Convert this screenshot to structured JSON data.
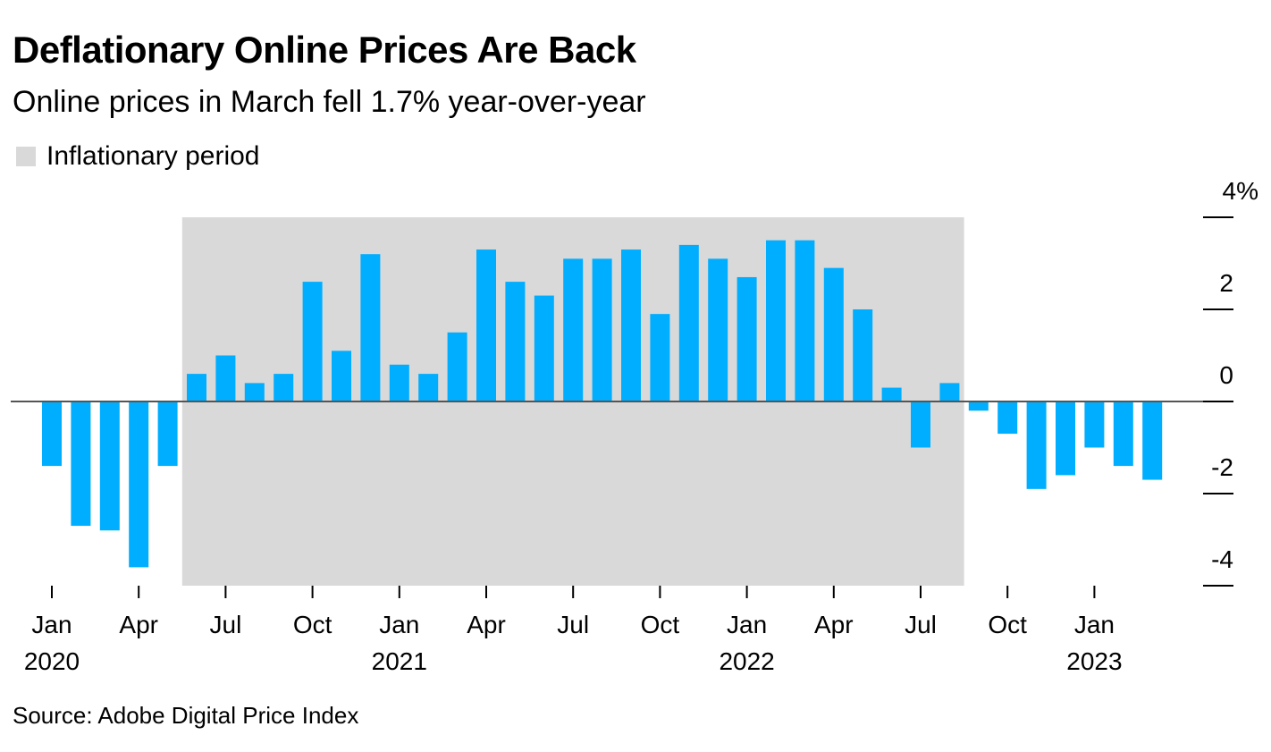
{
  "title": "Deflationary Online Prices Are Back",
  "subtitle": "Online prices in March fell 1.7% year-over-year",
  "legend": {
    "label": "Inflationary period",
    "color": "#d9d9d9"
  },
  "source": "Source: Adobe Digital Price Index",
  "colors": {
    "bar": "#00aeff",
    "shade": "#d9d9d9",
    "zero_line": "#555555"
  },
  "chart_data": {
    "type": "bar",
    "categories": [
      "2020-01",
      "2020-02",
      "2020-03",
      "2020-04",
      "2020-05",
      "2020-06",
      "2020-07",
      "2020-08",
      "2020-09",
      "2020-10",
      "2020-11",
      "2020-12",
      "2021-01",
      "2021-02",
      "2021-03",
      "2021-04",
      "2021-05",
      "2021-06",
      "2021-07",
      "2021-08",
      "2021-09",
      "2021-10",
      "2021-11",
      "2021-12",
      "2022-01",
      "2022-02",
      "2022-03",
      "2022-04",
      "2022-05",
      "2022-06",
      "2022-07",
      "2022-08",
      "2022-09",
      "2022-10",
      "2022-11",
      "2022-12",
      "2023-01",
      "2023-02",
      "2023-03"
    ],
    "values": [
      -1.4,
      -2.7,
      -2.8,
      -3.6,
      -1.4,
      0.6,
      1.0,
      0.4,
      0.6,
      2.6,
      1.1,
      3.2,
      0.8,
      0.6,
      1.5,
      3.3,
      2.6,
      2.3,
      3.1,
      3.1,
      3.3,
      1.9,
      3.4,
      3.1,
      2.7,
      3.5,
      3.5,
      2.9,
      2.0,
      0.3,
      -1.0,
      0.4,
      -0.2,
      -0.7,
      -1.9,
      -1.6,
      -1.0,
      -1.4,
      -1.7
    ],
    "shaded_region": {
      "label": "Inflationary period",
      "start": "2020-06",
      "end": "2022-08"
    },
    "ylim": [
      -4,
      4
    ],
    "y_ticks": [
      "4%",
      "2",
      "0",
      "-2",
      "-4"
    ],
    "y_tick_values": [
      4,
      2,
      0,
      -2,
      -4
    ],
    "x_ticks": [
      {
        "at": "2020-01",
        "label": "Jan",
        "year": "2020"
      },
      {
        "at": "2020-04",
        "label": "Apr",
        "year": ""
      },
      {
        "at": "2020-07",
        "label": "Jul",
        "year": ""
      },
      {
        "at": "2020-10",
        "label": "Oct",
        "year": ""
      },
      {
        "at": "2021-01",
        "label": "Jan",
        "year": "2021"
      },
      {
        "at": "2021-04",
        "label": "Apr",
        "year": ""
      },
      {
        "at": "2021-07",
        "label": "Jul",
        "year": ""
      },
      {
        "at": "2021-10",
        "label": "Oct",
        "year": ""
      },
      {
        "at": "2022-01",
        "label": "Jan",
        "year": "2022"
      },
      {
        "at": "2022-04",
        "label": "Apr",
        "year": ""
      },
      {
        "at": "2022-07",
        "label": "Jul",
        "year": ""
      },
      {
        "at": "2022-10",
        "label": "Oct",
        "year": ""
      },
      {
        "at": "2023-01",
        "label": "Jan",
        "year": "2023"
      }
    ],
    "y_axis_position": "right",
    "grid": false
  }
}
